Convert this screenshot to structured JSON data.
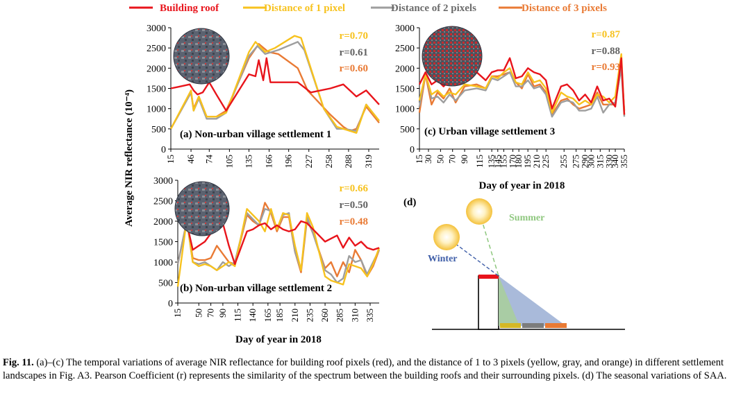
{
  "legend": [
    {
      "label": "Building roof",
      "color": "#e8141b"
    },
    {
      "label": "Distance of 1 pixel",
      "color": "#f7c21e"
    },
    {
      "label": "Distance of 2 pixels",
      "color": "#9e9e9e"
    },
    {
      "label": "Distance of 3 pixels",
      "color": "#e97a34"
    }
  ],
  "ylabel": "Average NIR reflectance (10⁻⁴)",
  "panel_d": {
    "label": "(d)",
    "summer": "Summer",
    "winter": "Winter"
  },
  "caption": {
    "lead": "Fig. 11.",
    "text": "(a)–(c) The temporal variations of average NIR reflectance for building roof pixels (red), and the distance of 1 to 3 pixels (yellow, gray, and orange) in different settlement landscapes in Fig. A3. Pearson Coefficient (r) represents the similarity of the spectrum between the building roofs and their surrounding pixels. (d) The seasonal variations of SAA."
  },
  "chart_data": [
    {
      "type": "line",
      "panel": "(a) Non-urban village settlement 1",
      "xlabel": "",
      "ylim": [
        0,
        3000
      ],
      "yticks": [
        0,
        500,
        1000,
        1500,
        2000,
        2500,
        3000
      ],
      "xticks": [
        15,
        46,
        74,
        105,
        135,
        166,
        196,
        227,
        258,
        288,
        319
      ],
      "xlim": [
        15,
        335
      ],
      "r": [
        {
          "text": "r=0.70",
          "color": "#f7c21e"
        },
        {
          "text": "r=0.61",
          "color": "#616161"
        },
        {
          "text": "r=0.60",
          "color": "#e97a34"
        }
      ],
      "series": [
        {
          "color": "#e8141b",
          "x": [
            15,
            30,
            44,
            50,
            56,
            64,
            74,
            85,
            100,
            135,
            145,
            150,
            157,
            162,
            168,
            182,
            210,
            230,
            260,
            280,
            300,
            315,
            335
          ],
          "y": [
            1500,
            1550,
            1600,
            1450,
            1350,
            1400,
            1650,
            1350,
            950,
            1850,
            1800,
            2200,
            1700,
            2250,
            1650,
            1650,
            1650,
            1400,
            1500,
            1600,
            1300,
            1450,
            1100
          ]
        },
        {
          "color": "#f7c21e",
          "x": [
            15,
            46,
            50,
            58,
            70,
            85,
            100,
            135,
            145,
            160,
            175,
            205,
            215,
            250,
            270,
            280,
            300,
            315,
            335
          ],
          "y": [
            500,
            1450,
            950,
            1300,
            800,
            800,
            900,
            2400,
            2650,
            2400,
            2500,
            2800,
            2750,
            1000,
            550,
            500,
            400,
            1100,
            700
          ]
        },
        {
          "color": "#9e9e9e",
          "x": [
            15,
            46,
            50,
            58,
            70,
            85,
            100,
            135,
            148,
            160,
            180,
            210,
            220,
            250,
            270,
            280,
            300,
            315,
            335
          ],
          "y": [
            500,
            1400,
            950,
            1250,
            750,
            750,
            900,
            2300,
            2550,
            2350,
            2450,
            2650,
            2450,
            1000,
            500,
            500,
            450,
            1100,
            700
          ]
        },
        {
          "color": "#e97a34",
          "x": [
            15,
            46,
            50,
            58,
            70,
            85,
            100,
            135,
            150,
            165,
            180,
            210,
            225,
            260,
            280,
            290,
            300,
            315,
            335
          ],
          "y": [
            500,
            1400,
            1000,
            1300,
            800,
            800,
            950,
            2250,
            2600,
            2400,
            2350,
            2000,
            1450,
            850,
            550,
            450,
            500,
            1050,
            650
          ]
        }
      ]
    },
    {
      "type": "line",
      "panel": "(b) Non-urban village settlement 2",
      "xlabel": "Day of year in 2018",
      "ylim": [
        0,
        3000
      ],
      "yticks": [
        0,
        500,
        1000,
        1500,
        2000,
        2500,
        3000
      ],
      "xticks": [
        15,
        50,
        70,
        90,
        115,
        140,
        165,
        185,
        210,
        235,
        260,
        285,
        310,
        335
      ],
      "xlim": [
        15,
        350
      ],
      "r": [
        {
          "text": "r=0.66",
          "color": "#f7c21e"
        },
        {
          "text": "r=0.50",
          "color": "#616161"
        },
        {
          "text": "r=0.48",
          "color": "#e97a34"
        }
      ],
      "series": [
        {
          "color": "#e8141b",
          "x": [
            15,
            20,
            30,
            40,
            50,
            60,
            70,
            80,
            90,
            100,
            110,
            130,
            140,
            150,
            160,
            170,
            180,
            190,
            200,
            210,
            220,
            230,
            240,
            260,
            280,
            290,
            300,
            310,
            320,
            330,
            340,
            350
          ],
          "y": [
            2050,
            2100,
            1950,
            1300,
            1400,
            1500,
            1700,
            2100,
            1950,
            1400,
            950,
            1750,
            1800,
            1900,
            1950,
            1800,
            1900,
            1800,
            1750,
            1800,
            2000,
            1950,
            1800,
            1500,
            1650,
            1350,
            1600,
            1400,
            1500,
            1350,
            1300,
            1350
          ]
        },
        {
          "color": "#f7c21e",
          "x": [
            15,
            30,
            40,
            50,
            60,
            70,
            80,
            90,
            100,
            110,
            130,
            140,
            150,
            160,
            170,
            180,
            190,
            200,
            210,
            220,
            230,
            240,
            260,
            270,
            280,
            290,
            300,
            310,
            320,
            330,
            340,
            350
          ],
          "y": [
            400,
            2050,
            1000,
            900,
            950,
            900,
            800,
            900,
            1000,
            900,
            2300,
            2150,
            2000,
            1750,
            2300,
            1800,
            2200,
            2150,
            1400,
            800,
            2200,
            1850,
            650,
            550,
            500,
            450,
            950,
            900,
            850,
            650,
            950,
            1350
          ]
        },
        {
          "color": "#9e9e9e",
          "x": [
            15,
            30,
            40,
            50,
            60,
            70,
            80,
            90,
            100,
            110,
            130,
            140,
            150,
            160,
            170,
            180,
            190,
            200,
            210,
            220,
            230,
            240,
            260,
            270,
            280,
            290,
            300,
            310,
            320,
            330,
            340,
            350
          ],
          "y": [
            950,
            2000,
            1000,
            950,
            1000,
            900,
            800,
            1000,
            900,
            1000,
            2200,
            2050,
            1900,
            2300,
            2250,
            1800,
            2150,
            2200,
            1250,
            800,
            2100,
            1700,
            800,
            700,
            500,
            600,
            1150,
            1000,
            1050,
            700,
            1000,
            1300
          ]
        },
        {
          "color": "#e97a34",
          "x": [
            15,
            30,
            40,
            50,
            60,
            70,
            80,
            90,
            100,
            110,
            130,
            140,
            150,
            160,
            170,
            180,
            190,
            200,
            210,
            220,
            230,
            240,
            260,
            270,
            280,
            290,
            300,
            310,
            320,
            330,
            340,
            350
          ],
          "y": [
            950,
            2000,
            1100,
            1050,
            1050,
            1100,
            1400,
            1200,
            1000,
            950,
            2150,
            2000,
            1900,
            2450,
            2200,
            1750,
            2100,
            2100,
            1250,
            750,
            2050,
            1700,
            850,
            1000,
            650,
            1000,
            750,
            1300,
            1050,
            650,
            900,
            1300
          ]
        }
      ]
    },
    {
      "type": "line",
      "panel": "(c) Urban village settlement 3",
      "xlabel": "Day of year in 2018",
      "ylim": [
        0,
        3000
      ],
      "yticks": [
        0,
        500,
        1000,
        1500,
        2000,
        2500,
        3000
      ],
      "xticks": [
        15,
        30,
        50,
        70,
        90,
        115,
        135,
        145,
        155,
        170,
        180,
        195,
        210,
        225,
        255,
        275,
        290,
        300,
        315,
        330,
        340,
        355
      ],
      "xlim": [
        15,
        355
      ],
      "r": [
        {
          "text": "r=0.87",
          "color": "#f7c21e"
        },
        {
          "text": "r=0.88",
          "color": "#616161"
        },
        {
          "text": "r=0.93",
          "color": "#e97a34"
        }
      ],
      "series": [
        {
          "color": "#e8141b",
          "x": [
            15,
            25,
            35,
            45,
            55,
            65,
            75,
            90,
            110,
            125,
            135,
            145,
            155,
            165,
            175,
            185,
            195,
            205,
            215,
            225,
            235,
            250,
            260,
            270,
            280,
            290,
            300,
            310,
            320,
            330,
            340,
            350,
            355
          ],
          "y": [
            1600,
            1900,
            1600,
            1700,
            1550,
            1700,
            1650,
            1800,
            1900,
            1700,
            1900,
            1950,
            1950,
            2250,
            1750,
            1800,
            2000,
            1900,
            1850,
            1700,
            1000,
            1550,
            1600,
            1450,
            1200,
            1350,
            1150,
            1550,
            1200,
            1250,
            1050,
            2250,
            850
          ]
        },
        {
          "color": "#f7c21e",
          "x": [
            15,
            25,
            35,
            45,
            55,
            65,
            75,
            90,
            110,
            125,
            135,
            145,
            155,
            165,
            175,
            185,
            195,
            205,
            215,
            225,
            235,
            250,
            260,
            270,
            280,
            290,
            300,
            310,
            320,
            330,
            340,
            350,
            355
          ],
          "y": [
            1200,
            1850,
            1350,
            1450,
            1300,
            1400,
            1350,
            1600,
            1550,
            1500,
            1800,
            1750,
            1900,
            2000,
            1650,
            1600,
            1900,
            1650,
            1700,
            1500,
            900,
            1400,
            1300,
            1250,
            1100,
            1200,
            1100,
            1350,
            1300,
            1150,
            1300,
            2350,
            850
          ]
        },
        {
          "color": "#9e9e9e",
          "x": [
            15,
            25,
            35,
            45,
            55,
            65,
            75,
            90,
            110,
            125,
            135,
            145,
            155,
            165,
            175,
            185,
            195,
            205,
            215,
            225,
            235,
            250,
            260,
            270,
            280,
            290,
            300,
            310,
            320,
            330,
            340,
            350,
            355
          ],
          "y": [
            1050,
            1900,
            1250,
            1300,
            1150,
            1350,
            1200,
            1450,
            1500,
            1450,
            1750,
            1700,
            1800,
            1900,
            1550,
            1550,
            1700,
            1500,
            1550,
            1350,
            800,
            1150,
            1200,
            1150,
            950,
            950,
            1000,
            1300,
            900,
            1100,
            1150,
            2000,
            800
          ]
        },
        {
          "color": "#e97a34",
          "x": [
            15,
            25,
            35,
            45,
            55,
            65,
            75,
            90,
            110,
            125,
            135,
            145,
            155,
            165,
            175,
            185,
            195,
            205,
            215,
            225,
            235,
            250,
            260,
            270,
            280,
            290,
            300,
            310,
            320,
            330,
            340,
            350,
            355
          ],
          "y": [
            900,
            1850,
            1100,
            1400,
            1250,
            1500,
            1150,
            1550,
            1600,
            1500,
            1800,
            1800,
            1850,
            1900,
            1650,
            1500,
            1850,
            1550,
            1600,
            1400,
            850,
            1200,
            1250,
            1100,
            1000,
            1050,
            1100,
            1400,
            1100,
            1100,
            1100,
            2050,
            950
          ]
        }
      ]
    }
  ]
}
